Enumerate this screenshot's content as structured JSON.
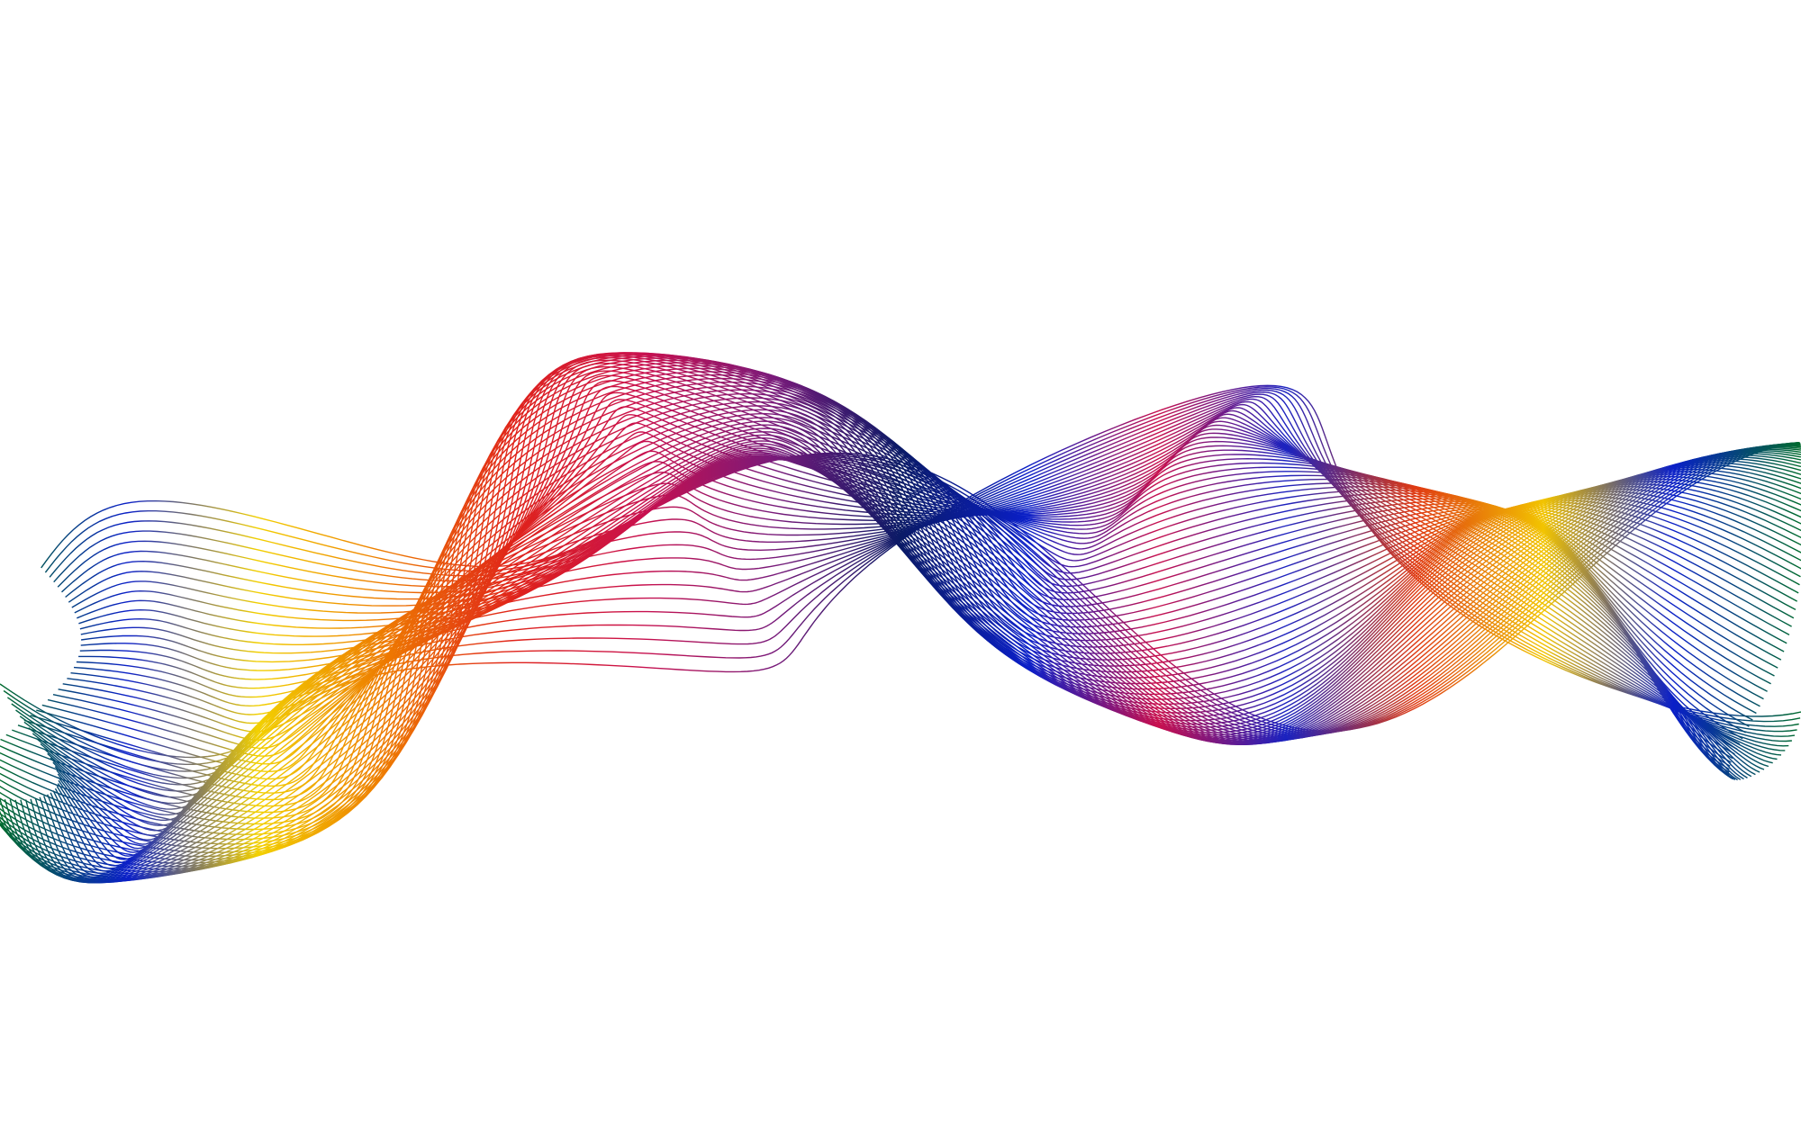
{
  "artwork": {
    "background": "#ffffff",
    "palette": [
      "#006b2d",
      "#0a1fc8",
      "#f2d000",
      "#ee7a00",
      "#e0221a",
      "#c8104e",
      "#7a1a7a",
      "#0a1a66",
      "#0a1fc8",
      "#c8104e",
      "#1a22c0",
      "#e03a12",
      "#f2c400",
      "#0a1fc8",
      "#006b2d"
    ]
  }
}
